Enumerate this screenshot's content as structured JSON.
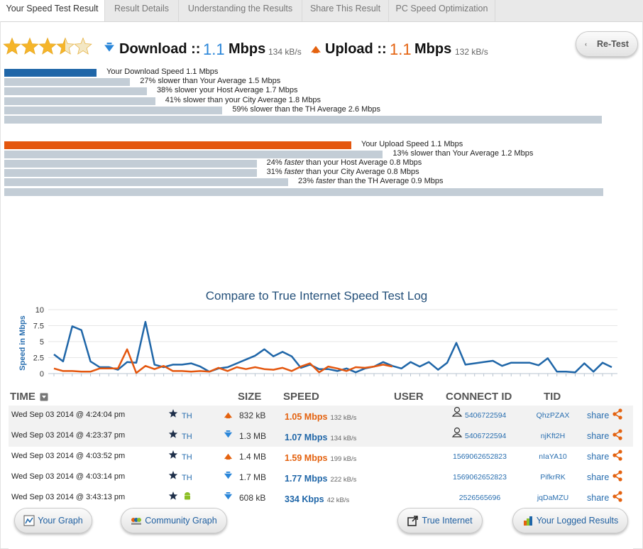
{
  "tabs": [
    "Your Speed Test Result",
    "Result Details",
    "Understanding the Results",
    "Share This Result",
    "PC Speed Optimization"
  ],
  "header": {
    "rating": 3.5,
    "download": {
      "label": "Download ::",
      "value": "1.1",
      "unit": "Mbps",
      "rate": "134 kB/s"
    },
    "upload": {
      "label": "Upload ::",
      "value": "1.1",
      "unit": "Mbps",
      "rate": "132 kB/s"
    },
    "retest": "Re-Test"
  },
  "download_bars": [
    {
      "value": 1.1,
      "parts": [
        {
          "text": "Your Download Speed 1.1 Mbps"
        }
      ]
    },
    {
      "value": 1.5,
      "parts": [
        {
          "text": "27% slower than Your Average 1.5 Mbps"
        }
      ]
    },
    {
      "value": 1.7,
      "parts": [
        {
          "text": "38% slower your Host Average 1.7 Mbps"
        }
      ]
    },
    {
      "value": 1.8,
      "parts": [
        {
          "text": "41% slower than your City Average 1.8 Mbps"
        }
      ]
    },
    {
      "value": 2.6,
      "parts": [
        {
          "text": "59% slower than the TH Average 2.6 Mbps"
        }
      ]
    }
  ],
  "upload_bars": [
    {
      "value": 1.1,
      "parts": [
        {
          "text": "Your Upload Speed 1.1 Mbps"
        }
      ]
    },
    {
      "value": 1.2,
      "parts": [
        {
          "text": "13% slower than Your Average 1.2 Mbps"
        }
      ]
    },
    {
      "value": 0.8,
      "parts": [
        {
          "text": "24% "
        },
        {
          "text": "faster",
          "italic": true
        },
        {
          "text": " than your Host Average 0.8 Mbps"
        }
      ]
    },
    {
      "value": 0.8,
      "parts": [
        {
          "text": "31% "
        },
        {
          "text": "faster",
          "italic": true
        },
        {
          "text": " than your City Average 0.8 Mbps"
        }
      ]
    },
    {
      "value": 0.9,
      "parts": [
        {
          "text": "23% "
        },
        {
          "text": "faster",
          "italic": true
        },
        {
          "text": " than the TH Average 0.9 Mbps"
        }
      ]
    }
  ],
  "chart_data": {
    "type": "line",
    "title": "Compare to True Internet Speed Test Log",
    "y_label": "Speed in Mbps",
    "ylim": [
      0,
      10
    ],
    "yticks": [
      0,
      2.5,
      5,
      7.5,
      10
    ],
    "grid": true,
    "series": [
      {
        "name": "Download",
        "color": "#1f66a8",
        "values": [
          3.0,
          1.9,
          7.4,
          6.8,
          1.9,
          1.0,
          1.0,
          0.6,
          1.8,
          1.7,
          8.1,
          1.4,
          1.0,
          1.4,
          1.4,
          1.6,
          1.1,
          0.3,
          0.8,
          1.0,
          1.6,
          2.2,
          2.8,
          3.8,
          2.7,
          3.4,
          2.7,
          0.9,
          1.4,
          0.7,
          0.7,
          0.4,
          0.8,
          0.2,
          0.8,
          1.1,
          1.8,
          1.2,
          0.8,
          1.8,
          1.1,
          1.8,
          0.6,
          1.7,
          4.8,
          1.4,
          1.6,
          1.8,
          2.0,
          1.2,
          1.7,
          1.7,
          1.7,
          1.3,
          2.4,
          0.3,
          0.3,
          0.2,
          1.6,
          0.3,
          1.7,
          1.0
        ]
      },
      {
        "name": "Upload",
        "color": "#e4570f",
        "values": [
          0.8,
          0.4,
          0.4,
          0.3,
          0.3,
          0.8,
          0.8,
          0.8,
          3.8,
          0.1,
          1.2,
          0.7,
          1.2,
          0.4,
          0.4,
          0.3,
          0.4,
          0.3,
          0.9,
          0.4,
          1.0,
          0.7,
          1.0,
          0.7,
          0.6,
          0.9,
          0.4,
          1.1,
          1.6,
          0.2,
          1.1,
          0.8,
          0.4,
          1.0,
          0.9,
          1.1,
          1.4,
          1.1,
          null,
          null,
          null,
          null,
          null,
          null,
          null,
          null,
          null,
          null,
          null,
          null,
          null,
          null,
          null,
          null,
          null,
          null,
          null,
          null,
          null,
          null,
          null,
          null
        ]
      }
    ]
  },
  "table": {
    "headers": {
      "time": "TIME",
      "size": "SIZE",
      "speed": "SPEED",
      "user": "USER",
      "connect_id": "CONNECT ID",
      "tid": "TID"
    },
    "rows": [
      {
        "time": "Wed Sep 03 2014 @ 4:24:04 pm",
        "location": "TH",
        "icon": "star",
        "direction": "upload",
        "size": "832 kB",
        "speed": "1.05 Mbps",
        "rate": "132 kB/s",
        "connect_icon": true,
        "connect_id": "5406722594",
        "tid": "QhzPZAX",
        "share": "share"
      },
      {
        "time": "Wed Sep 03 2014 @ 4:23:37 pm",
        "location": "TH",
        "icon": "star",
        "direction": "download",
        "size": "1.3 MB",
        "speed": "1.07 Mbps",
        "rate": "134 kB/s",
        "connect_icon": true,
        "connect_id": "5406722594",
        "tid": "njKft2H",
        "share": "share"
      },
      {
        "time": "Wed Sep 03 2014 @ 4:03:52 pm",
        "location": "TH",
        "icon": "star",
        "direction": "upload",
        "size": "1.4 MB",
        "speed": "1.59 Mbps",
        "rate": "199 kB/s",
        "connect_icon": false,
        "connect_id": "1569062652823",
        "tid": "nIaYA10",
        "share": "share"
      },
      {
        "time": "Wed Sep 03 2014 @ 4:03:14 pm",
        "location": "TH",
        "icon": "star",
        "direction": "download",
        "size": "1.7 MB",
        "speed": "1.77 Mbps",
        "rate": "222 kB/s",
        "connect_icon": false,
        "connect_id": "1569062652823",
        "tid": "PifkrRK",
        "share": "share"
      },
      {
        "time": "Wed Sep 03 2014 @ 3:43:13 pm",
        "location": null,
        "icon": "android",
        "direction": "download",
        "size": "608 kB",
        "speed": "334 Kbps",
        "rate": "42 kB/s",
        "connect_icon": false,
        "connect_id": "2526565696",
        "tid": "jqDaMZU",
        "share": "share"
      }
    ]
  },
  "buttons": [
    "Your Graph",
    "Community Graph",
    "True Internet",
    "Your Logged Results"
  ]
}
